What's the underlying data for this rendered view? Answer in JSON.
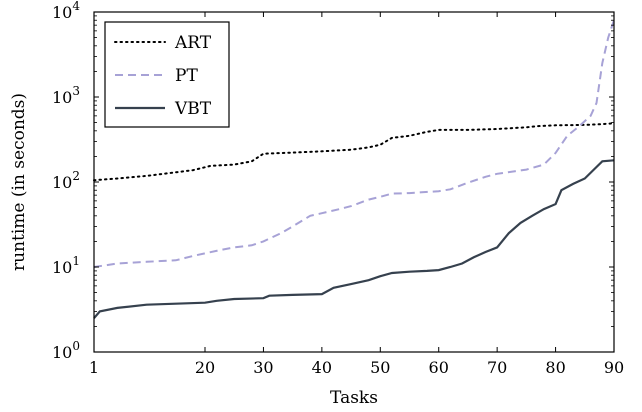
{
  "chart_data": {
    "type": "line",
    "xlabel": "Tasks",
    "ylabel": "runtime (in seconds)",
    "xlim": [
      1,
      90
    ],
    "ylim": [
      1,
      10000
    ],
    "yscale": "log",
    "grid": false,
    "legend_position": "top-left",
    "x_ticks": [
      1,
      20,
      30,
      40,
      50,
      60,
      70,
      80,
      90
    ],
    "y_ticks": [
      {
        "value": 1,
        "base": "10",
        "exp": "0"
      },
      {
        "value": 10,
        "base": "10",
        "exp": "1"
      },
      {
        "value": 100,
        "base": "10",
        "exp": "2"
      },
      {
        "value": 1000,
        "base": "10",
        "exp": "3"
      },
      {
        "value": 10000,
        "base": "10",
        "exp": "4"
      }
    ],
    "series": [
      {
        "name": "ART",
        "color": "#000000",
        "style": "dotted",
        "points": [
          [
            1,
            105
          ],
          [
            5,
            110
          ],
          [
            10,
            118
          ],
          [
            15,
            130
          ],
          [
            18,
            138
          ],
          [
            21,
            155
          ],
          [
            25,
            160
          ],
          [
            28,
            175
          ],
          [
            30,
            215
          ],
          [
            35,
            222
          ],
          [
            40,
            230
          ],
          [
            45,
            240
          ],
          [
            48,
            255
          ],
          [
            50,
            275
          ],
          [
            52,
            330
          ],
          [
            55,
            350
          ],
          [
            58,
            390
          ],
          [
            60,
            410
          ],
          [
            65,
            410
          ],
          [
            70,
            420
          ],
          [
            75,
            440
          ],
          [
            77,
            455
          ],
          [
            80,
            465
          ],
          [
            85,
            470
          ],
          [
            88,
            480
          ],
          [
            90,
            490
          ]
        ]
      },
      {
        "name": "PT",
        "color": "#a7a2d6",
        "style": "dashed",
        "points": [
          [
            1,
            10
          ],
          [
            5,
            11
          ],
          [
            10,
            11.5
          ],
          [
            15,
            12
          ],
          [
            18,
            13.5
          ],
          [
            20,
            14.5
          ],
          [
            23,
            16
          ],
          [
            25,
            17
          ],
          [
            28,
            18
          ],
          [
            30,
            20
          ],
          [
            33,
            25
          ],
          [
            35,
            30
          ],
          [
            38,
            40
          ],
          [
            40,
            43
          ],
          [
            43,
            48
          ],
          [
            45,
            52
          ],
          [
            48,
            62
          ],
          [
            50,
            67
          ],
          [
            52,
            73
          ],
          [
            55,
            74
          ],
          [
            60,
            78
          ],
          [
            62,
            82
          ],
          [
            65,
            98
          ],
          [
            68,
            115
          ],
          [
            70,
            125
          ],
          [
            75,
            140
          ],
          [
            78,
            160
          ],
          [
            80,
            220
          ],
          [
            82,
            350
          ],
          [
            84,
            450
          ],
          [
            86,
            600
          ],
          [
            87,
            850
          ],
          [
            88,
            2500
          ],
          [
            89,
            5000
          ],
          [
            90,
            8000
          ]
        ]
      },
      {
        "name": "VBT",
        "color": "#36414e",
        "style": "solid",
        "points": [
          [
            1,
            2.5
          ],
          [
            2,
            3.0
          ],
          [
            5,
            3.3
          ],
          [
            10,
            3.6
          ],
          [
            20,
            3.8
          ],
          [
            22,
            4.0
          ],
          [
            25,
            4.2
          ],
          [
            30,
            4.3
          ],
          [
            31,
            4.6
          ],
          [
            35,
            4.7
          ],
          [
            40,
            4.8
          ],
          [
            42,
            5.7
          ],
          [
            45,
            6.3
          ],
          [
            48,
            7.0
          ],
          [
            50,
            7.8
          ],
          [
            52,
            8.5
          ],
          [
            55,
            8.8
          ],
          [
            58,
            9.0
          ],
          [
            60,
            9.2
          ],
          [
            62,
            10
          ],
          [
            64,
            11
          ],
          [
            66,
            13
          ],
          [
            68,
            15
          ],
          [
            70,
            17
          ],
          [
            72,
            25
          ],
          [
            74,
            33
          ],
          [
            76,
            40
          ],
          [
            78,
            48
          ],
          [
            80,
            55
          ],
          [
            81,
            80
          ],
          [
            83,
            95
          ],
          [
            85,
            110
          ],
          [
            87,
            150
          ],
          [
            88,
            175
          ],
          [
            90,
            180
          ]
        ]
      }
    ]
  }
}
